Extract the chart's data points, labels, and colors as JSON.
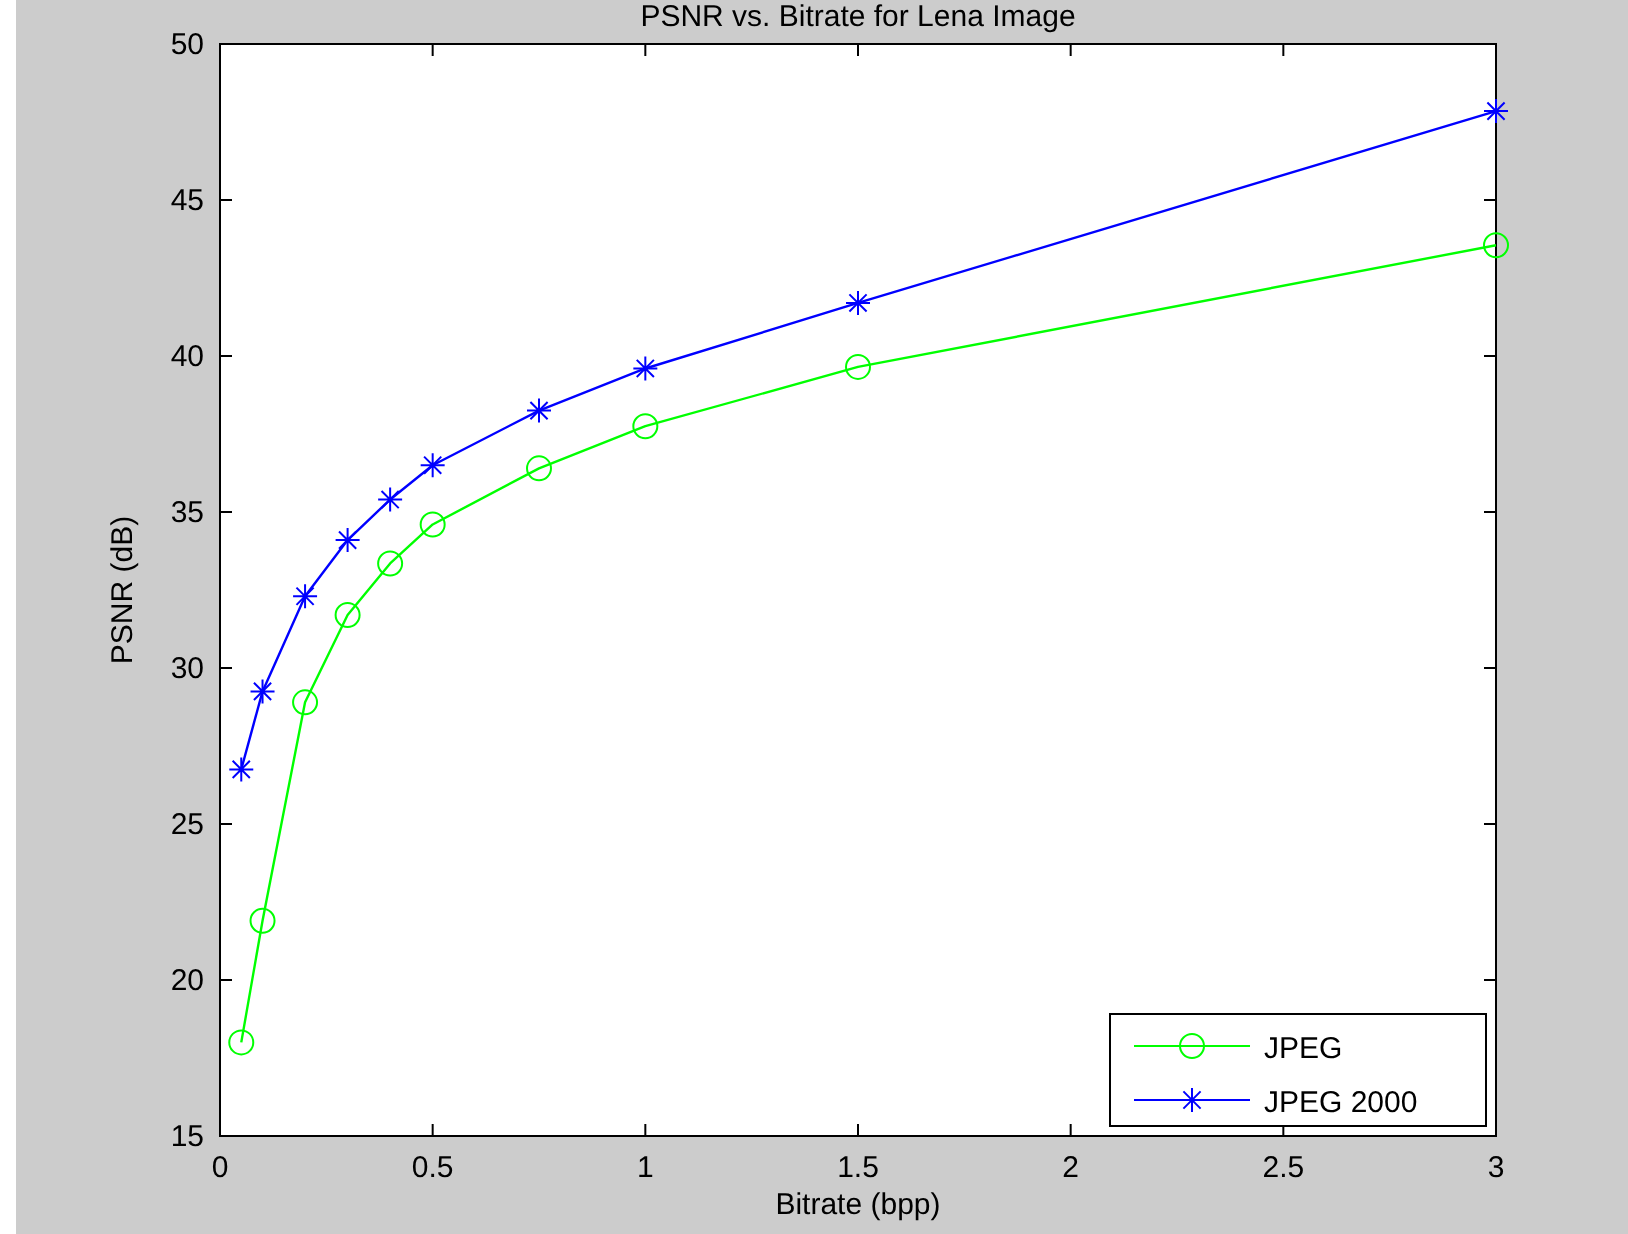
{
  "chart_data": {
    "type": "line",
    "title": "PSNR vs. Bitrate for Lena Image",
    "xlabel": "Bitrate (bpp)",
    "ylabel": "PSNR (dB)",
    "x": [
      0.05,
      0.1,
      0.2,
      0.3,
      0.4,
      0.5,
      0.75,
      1,
      1.5,
      3
    ],
    "series": [
      {
        "name": "JPEG",
        "color": "#00ff00",
        "marker": "circle",
        "values": [
          18.0,
          21.9,
          28.9,
          31.7,
          33.35,
          34.6,
          36.4,
          37.75,
          39.65,
          43.55
        ]
      },
      {
        "name": "JPEG 2000",
        "color": "#0000ff",
        "marker": "cross",
        "values": [
          26.75,
          29.25,
          32.3,
          34.1,
          35.4,
          36.5,
          38.25,
          39.6,
          41.7,
          47.85
        ]
      }
    ],
    "xlim": [
      0,
      3
    ],
    "xticks": [
      0,
      0.5,
      1,
      1.5,
      2,
      2.5,
      3
    ],
    "ylim": [
      15,
      50
    ],
    "yticks": [
      15,
      20,
      25,
      30,
      35,
      40,
      45,
      50
    ],
    "grid": false,
    "legend": "bottom right",
    "line_style": "solid"
  }
}
